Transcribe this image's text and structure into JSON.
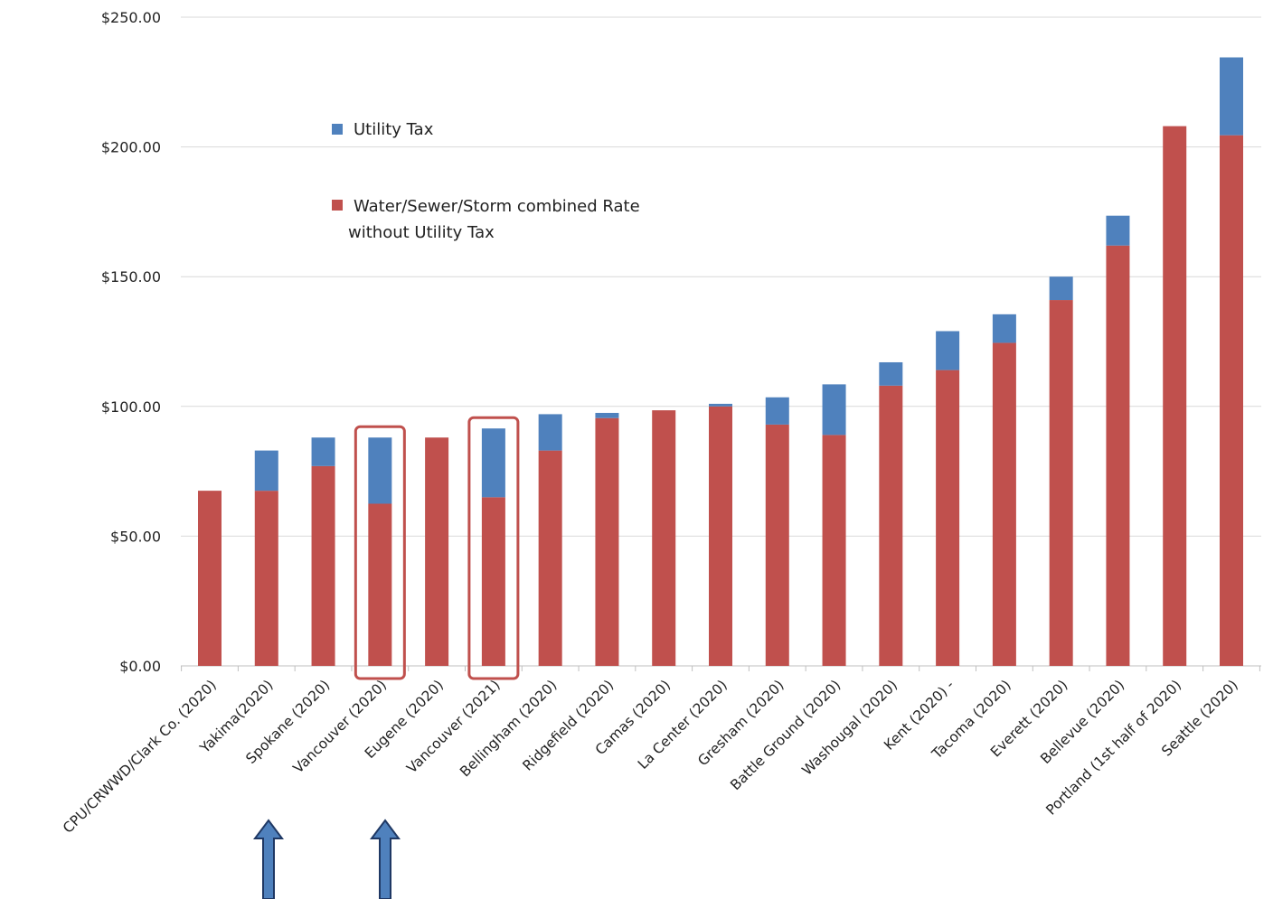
{
  "chart_data": {
    "type": "bar",
    "stacked": true,
    "categories": [
      "CPU/CRWWD/Clark Co. (2020)",
      "Yakima(2020)",
      "Spokane (2020)",
      "Vancouver (2020)",
      "Eugene (2020)",
      "Vancouver (2021)",
      "Bellingham (2020)",
      "Ridgefield (2020)",
      "Camas (2020)",
      "La Center (2020)",
      "Gresham (2020)",
      "Battle Ground (2020)",
      "Washougal (2020)",
      "Kent (2020) -",
      "Tacoma (2020)",
      "Everett (2020)",
      "Bellevue (2020)",
      "Portland (1st half of 2020)",
      "Seattle (2020)"
    ],
    "series": [
      {
        "name": "Water/Sewer/Storm combined Rate without Utility Tax",
        "color": "#c0504d",
        "values": [
          67.5,
          67.5,
          77.0,
          62.5,
          88.0,
          65.0,
          83.0,
          95.5,
          98.5,
          100.0,
          93.0,
          89.0,
          108.0,
          114.0,
          124.5,
          141.0,
          162.0,
          208.0,
          204.5
        ]
      },
      {
        "name": "Utility Tax",
        "color": "#4f81bd",
        "values": [
          0,
          15.5,
          11.0,
          25.5,
          0,
          26.5,
          14.0,
          2.0,
          0,
          1.0,
          10.5,
          19.5,
          9.0,
          15.0,
          11.0,
          9.0,
          11.5,
          0,
          30.0
        ]
      }
    ],
    "y_ticks": [
      "$0.00",
      "$50.00",
      "$100.00",
      "$150.00",
      "$200.00",
      "$250.00"
    ],
    "ylim": [
      0,
      250
    ],
    "grid": true,
    "legend_placement": "upper-left inside plot",
    "legend": {
      "tax_label": "Utility Tax",
      "rate_label_line1": "Water/Sewer/Storm combined Rate",
      "rate_label_line2": "without Utility Tax"
    },
    "highlighted_categories": [
      "Vancouver (2020)",
      "Vancouver (2021)"
    ],
    "highlight_color": "#c0504d",
    "arrow_color": "#4f81bd",
    "arrow_stroke": "#1f3864"
  }
}
